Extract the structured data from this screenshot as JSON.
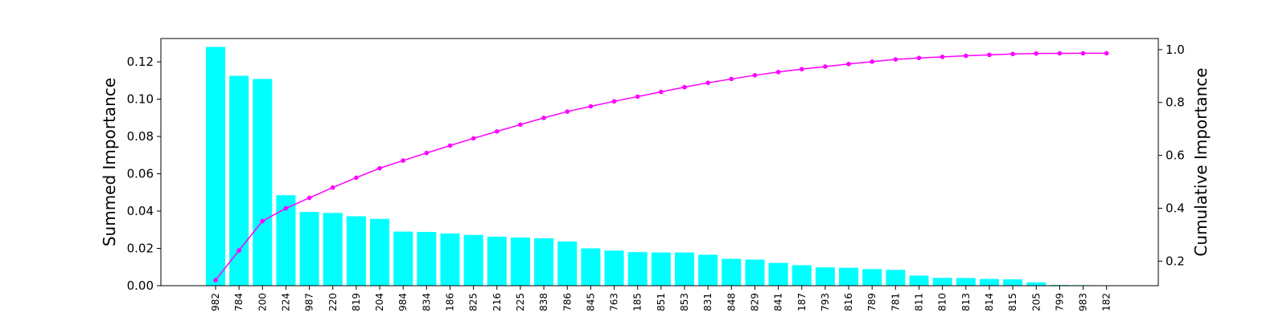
{
  "chart_data": {
    "type": "bar",
    "categories": [
      "982",
      "784",
      "200",
      "224",
      "987",
      "220",
      "819",
      "204",
      "984",
      "834",
      "186",
      "825",
      "216",
      "225",
      "838",
      "786",
      "845",
      "763",
      "185",
      "851",
      "853",
      "831",
      "848",
      "829",
      "841",
      "187",
      "793",
      "816",
      "789",
      "781",
      "811",
      "810",
      "813",
      "814",
      "815",
      "205",
      "799",
      "983",
      "182"
    ],
    "series": [
      {
        "axis": "left",
        "type": "bar",
        "color": "#00ffff",
        "values": [
          0.128,
          0.1125,
          0.1108,
          0.0485,
          0.0395,
          0.039,
          0.0372,
          0.0358,
          0.029,
          0.0288,
          0.028,
          0.0272,
          0.0263,
          0.0258,
          0.0254,
          0.0237,
          0.02,
          0.0188,
          0.018,
          0.0178,
          0.0178,
          0.0166,
          0.0144,
          0.014,
          0.0122,
          0.011,
          0.0098,
          0.0096,
          0.0089,
          0.0085,
          0.0054,
          0.0042,
          0.0041,
          0.0036,
          0.0034,
          0.0018,
          0.0004,
          0.0003,
          0.0001
        ]
      },
      {
        "axis": "right",
        "type": "line",
        "color": "#ff00ff",
        "marker": "dot",
        "values": [
          0.128,
          0.2405,
          0.3513,
          0.3998,
          0.4393,
          0.4783,
          0.5155,
          0.5513,
          0.5803,
          0.6091,
          0.6371,
          0.6643,
          0.6906,
          0.7164,
          0.7418,
          0.7655,
          0.7855,
          0.8043,
          0.8223,
          0.8401,
          0.8579,
          0.8745,
          0.8889,
          0.9029,
          0.9151,
          0.9261,
          0.9359,
          0.9455,
          0.9544,
          0.9629,
          0.9683,
          0.9725,
          0.9766,
          0.9802,
          0.9836,
          0.9854,
          0.9858,
          0.9861,
          0.9862
        ]
      }
    ],
    "ylabel": "Summed Importance",
    "y2label": "Cumulative Importance",
    "ylim": [
      0,
      0.1325
    ],
    "y2lim": [
      0.107,
      1.042
    ],
    "yticks": [
      "0.00",
      "0.02",
      "0.04",
      "0.06",
      "0.08",
      "0.10",
      "0.12"
    ],
    "y2ticks": [
      "0.2",
      "0.4",
      "0.6",
      "0.8",
      "1.0"
    ],
    "grid": false
  }
}
